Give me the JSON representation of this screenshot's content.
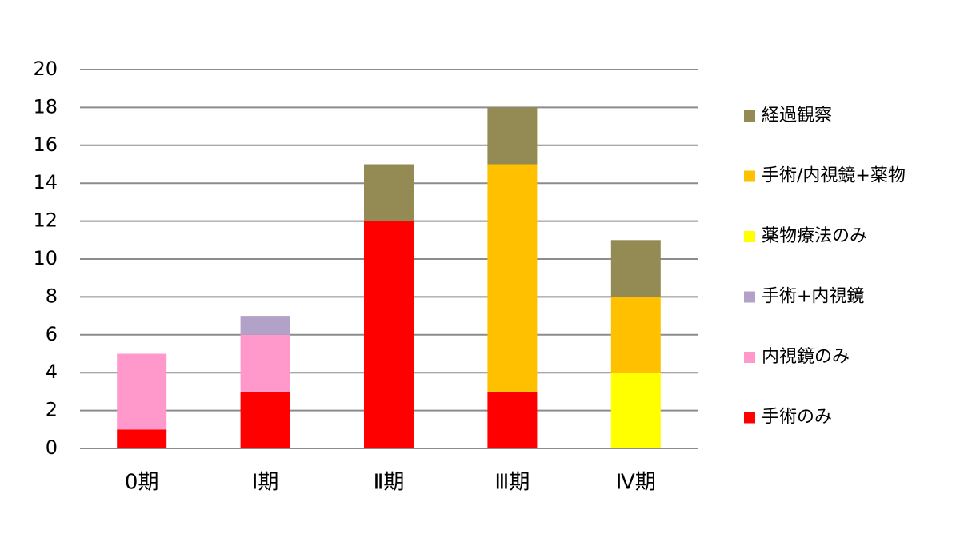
{
  "chart_data": {
    "type": "stacked_bar",
    "categories": [
      "0期",
      "Ⅰ期",
      "Ⅱ期",
      "Ⅲ期",
      "Ⅳ期"
    ],
    "series": [
      {
        "name": "手術のみ",
        "color": "#ff0000",
        "values": [
          1,
          3,
          12,
          3,
          0
        ]
      },
      {
        "name": "内視鏡のみ",
        "color": "#ff99cc",
        "values": [
          4,
          3,
          0,
          0,
          0
        ]
      },
      {
        "name": "手術+内視鏡",
        "color": "#b3a2c7",
        "values": [
          0,
          1,
          0,
          0,
          0
        ]
      },
      {
        "name": "薬物療法のみ",
        "color": "#ffff00",
        "values": [
          0,
          0,
          0,
          0,
          4
        ]
      },
      {
        "name": "手術/内視鏡+薬物",
        "color": "#ffc000",
        "values": [
          0,
          0,
          0,
          12,
          4
        ]
      },
      {
        "name": "経過観察",
        "color": "#948a54",
        "values": [
          0,
          0,
          3,
          3,
          3
        ]
      }
    ],
    "ylim": [
      0,
      20
    ],
    "yticks": [
      0,
      2,
      4,
      6,
      8,
      10,
      12,
      14,
      16,
      18,
      20
    ],
    "grid": true,
    "legend": "right"
  }
}
